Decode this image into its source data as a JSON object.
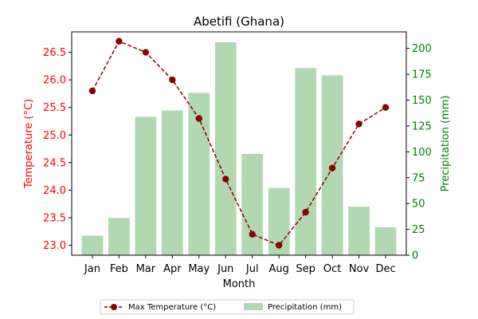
{
  "chart_data": {
    "type": "bar+line",
    "title": "Abetifi (Ghana)",
    "xlabel": "Month",
    "categories": [
      "Jan",
      "Feb",
      "Mar",
      "Apr",
      "May",
      "Jun",
      "Jul",
      "Aug",
      "Sep",
      "Oct",
      "Nov",
      "Dec"
    ],
    "temperature": {
      "name": "Max Temperature (°C)",
      "axis_label": "Temperature (°C)",
      "values": [
        25.8,
        26.7,
        26.5,
        26.0,
        25.3,
        24.2,
        23.2,
        23.0,
        23.6,
        24.4,
        25.2,
        25.5
      ],
      "ylim": [
        22.82,
        26.87
      ],
      "ticks": [
        "23.0",
        "23.5",
        "24.0",
        "24.5",
        "25.0",
        "25.5",
        "26.0",
        "26.5"
      ],
      "color": "#8b0000",
      "tick_color": "#ff0000"
    },
    "precipitation": {
      "name": "Precipitation (mm)",
      "axis_label": "Precipitation (mm)",
      "values": [
        19,
        36,
        134,
        140,
        157,
        206,
        98,
        65,
        181,
        174,
        47,
        27
      ],
      "ylim": [
        0,
        216
      ],
      "ticks": [
        "0",
        "25",
        "50",
        "75",
        "100",
        "125",
        "150",
        "175",
        "200"
      ],
      "color": "#b2d8b2",
      "tick_color": "#008000"
    },
    "legend": {
      "position": "bottom-center",
      "entries": [
        "Max Temperature (°C)",
        "Precipitation (mm)"
      ]
    },
    "grid": false
  }
}
